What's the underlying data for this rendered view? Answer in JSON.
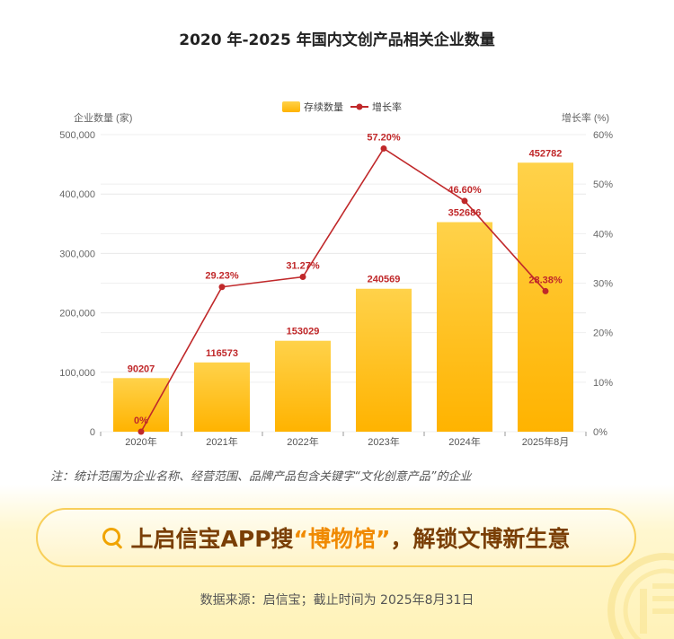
{
  "header": {
    "title": "2020 年-2025 年国内文创产品相关企业数量"
  },
  "chart_data": {
    "type": "bar+line",
    "categories": [
      "2020年",
      "2021年",
      "2022年",
      "2023年",
      "2024年",
      "2025年8月"
    ],
    "series": [
      {
        "name": "存续数量",
        "type": "bar",
        "axis": "left",
        "values": [
          90207,
          116573,
          153029,
          240569,
          352686,
          452782
        ],
        "labels": [
          "90207",
          "116573",
          "153029",
          "240569",
          "352686",
          "452782"
        ],
        "color": "#ffbe1a"
      },
      {
        "name": "增长率",
        "type": "line",
        "axis": "right",
        "values": [
          0,
          29.23,
          31.27,
          57.2,
          46.6,
          28.38
        ],
        "labels": [
          "0%",
          "29.23%",
          "31.27%",
          "57.20%",
          "46.60%",
          "28.38%"
        ],
        "color": "#c0282a"
      }
    ],
    "ylabel_left": "企业数量 (家)",
    "ylabel_right": "增长率 (%)",
    "ylim_left": [
      0,
      500000
    ],
    "ylim_right": [
      0,
      60
    ],
    "yticks_left": [
      "0",
      "100,000",
      "200,000",
      "300,000",
      "400,000",
      "500,000"
    ],
    "yticks_right": [
      "0%",
      "10%",
      "20%",
      "30%",
      "40%",
      "50%",
      "60%"
    ],
    "legend_position": "top-center",
    "grid": true
  },
  "footnote": "注：统计范围为企业名称、经营范围、品牌产品包含关键字“文化创意产品”的企业",
  "search_banner": {
    "prefix": "上启信宝APP搜",
    "keyword": "“博物馆”",
    "suffix": "，解锁文博新生意"
  },
  "source": "数据来源：启信宝；截止时间为 2025年8月31日",
  "colors": {
    "bar_top": "#ffd24a",
    "bar_bottom": "#ffb300",
    "line": "#c0282a",
    "accent": "#f08a00"
  }
}
